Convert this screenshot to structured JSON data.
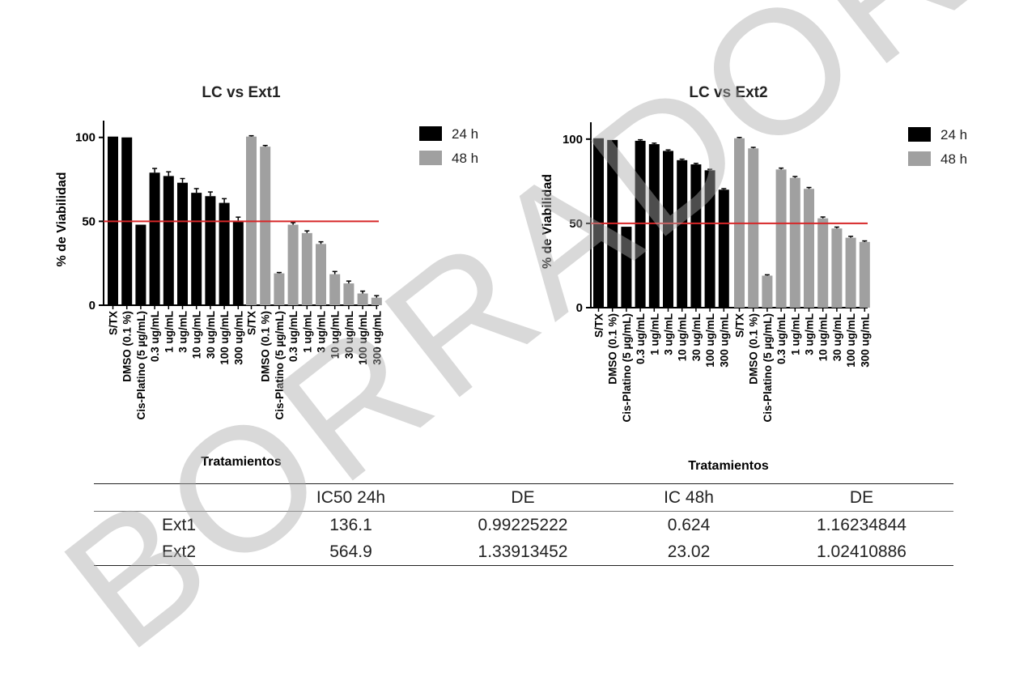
{
  "chart_data": [
    {
      "type": "bar",
      "title": "LC vs Ext1",
      "xlabel": "Tratamientos",
      "ylabel": "% de Viabilidad",
      "ylim": [
        0,
        110
      ],
      "yticks": [
        0,
        50,
        100
      ],
      "reference_line": {
        "y": 50,
        "color": "#d62728"
      },
      "legend_position": "right",
      "series": [
        {
          "name": "24 h",
          "color": "#000000",
          "categories": [
            "S/TX",
            "DMSO (0.1 %)",
            "Cis-Platino (5 µg/mL)",
            "0.3 ug/mL",
            "1 ug/mL",
            "3 ug/mL",
            "10 ug/mL",
            "30 ug/mL",
            "100 ug/mL",
            "300 ug/mL"
          ],
          "values": [
            100.5,
            100,
            48,
            79,
            77,
            73,
            67,
            65,
            61,
            50
          ],
          "errors": [
            0,
            0,
            0,
            2.5,
            2.5,
            2.5,
            2.5,
            2.5,
            2.5,
            2.5
          ]
        },
        {
          "name": "48 h",
          "color": "#a0a0a0",
          "categories": [
            "S/TX",
            "DMSO (0.1 %)",
            "Cis-Platino (5 µg/mL)",
            "0.3 ug/mL",
            "1 ug/mL",
            "3 ug/mL",
            "10 ug/mL",
            "30 ug/mL",
            "100 ug/mL",
            "300 ug/mL"
          ],
          "values": [
            100.5,
            94.5,
            19,
            48,
            43,
            36.5,
            18.5,
            13,
            7,
            4.5
          ],
          "errors": [
            0.5,
            0.7,
            0.5,
            1.2,
            1.3,
            1.3,
            1.6,
            1.4,
            1.4,
            1.2
          ]
        }
      ]
    },
    {
      "type": "bar",
      "title": "LC vs Ext2",
      "xlabel": "Tratamientos",
      "ylabel": "% de Viabilidad",
      "ylim": [
        0,
        110
      ],
      "yticks": [
        0,
        50,
        100
      ],
      "reference_line": {
        "y": 50,
        "color": "#d62728"
      },
      "legend_position": "right",
      "series": [
        {
          "name": "24 h",
          "color": "#000000",
          "categories": [
            "S/TX",
            "DMSO (0.1 %)",
            "Cis-Platino (5 µg/mL)",
            "0.3 ug/mL",
            "1 ug/mL",
            "3 ug/mL",
            "10 ug/mL",
            "30 ug/mL",
            "100 ug/mL",
            "300 ug/mL"
          ],
          "values": [
            100.5,
            99.5,
            48,
            99,
            97,
            93,
            87.5,
            85,
            81.5,
            70
          ],
          "errors": [
            0,
            0,
            0,
            0.6,
            0.6,
            0.6,
            0.6,
            0.6,
            0.6,
            0.6
          ]
        },
        {
          "name": "48 h",
          "color": "#a0a0a0",
          "categories": [
            "S/TX",
            "DMSO (0.1 %)",
            "Cis-Platino (5 µg/mL)",
            "0.3 ug/mL",
            "1 ug/mL",
            "3 ug/mL",
            "10 ug/mL",
            "30 ug/mL",
            "100 ug/mL",
            "300 ug/mL"
          ],
          "values": [
            100.5,
            94.5,
            19,
            82,
            77,
            70.5,
            53,
            47,
            41.5,
            39
          ],
          "errors": [
            0.5,
            0.6,
            0.5,
            0.8,
            0.8,
            0.8,
            0.8,
            0.8,
            0.8,
            0.6
          ]
        }
      ]
    }
  ],
  "table": {
    "headers": [
      "",
      "IC50 24h",
      "DE",
      "IC 48h",
      "DE"
    ],
    "rows": [
      [
        "Ext1",
        "136.1",
        "0.99225222",
        "0.624",
        "1.16234844"
      ],
      [
        "Ext2",
        "564.9",
        "1.33913452",
        "23.02",
        "1.02410886"
      ]
    ]
  },
  "watermark": "BORRADOR"
}
